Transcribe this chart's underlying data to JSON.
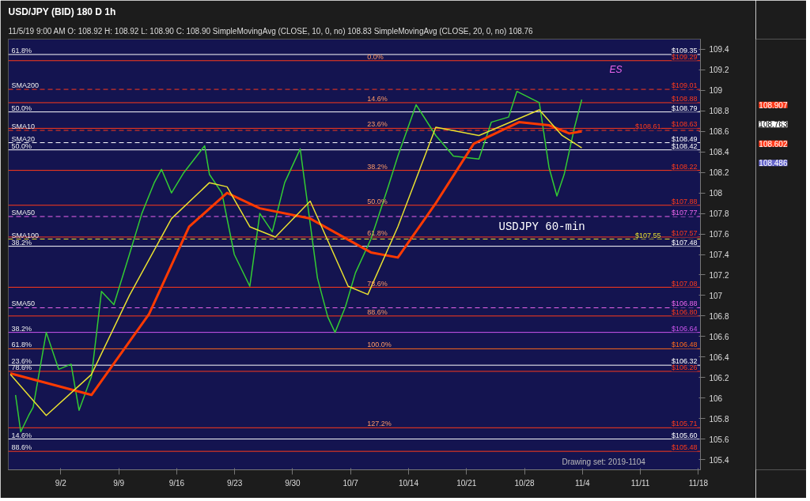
{
  "chart_data": {
    "type": "line",
    "title": "USD/JPY (BID) 180 D 1h",
    "subtitle": "11/5/19 9:00 AM   O: 108.92   H: 108.92   L: 108.90   C: 108.90   SimpleMovingAvg (CLOSE, 10, 0, no) 108.83   SimpleMovingAvg (CLOSE, 20, 0, no) 108.76",
    "xlim": [
      "2019-08-26T16:00",
      "2019-11-18T06:00"
    ],
    "ylim": [
      105.3,
      109.5
    ],
    "xticks": [
      {
        "value": "2019-09-02",
        "label": "9/2"
      },
      {
        "value": "2019-09-09",
        "label": "9/9"
      },
      {
        "value": "2019-09-16",
        "label": "9/16"
      },
      {
        "value": "2019-09-23",
        "label": "9/23"
      },
      {
        "value": "2019-09-30",
        "label": "9/30"
      },
      {
        "value": "2019-10-07",
        "label": "10/7"
      },
      {
        "value": "2019-10-14",
        "label": "10/14"
      },
      {
        "value": "2019-10-21",
        "label": "10/21"
      },
      {
        "value": "2019-10-28",
        "label": "10/28"
      },
      {
        "value": "2019-11-04",
        "label": "11/4"
      },
      {
        "value": "2019-11-11",
        "label": "11/11"
      },
      {
        "value": "2019-11-18",
        "label": "11/18"
      }
    ],
    "yticks": [
      105.4,
      105.6,
      105.8,
      106,
      106.2,
      106.4,
      106.6,
      106.8,
      107,
      107.2,
      107.4,
      107.6,
      107.8,
      108,
      108.2,
      108.4,
      108.6,
      108.8,
      109,
      109.2,
      109.4
    ],
    "grid": false,
    "line_style": "solid",
    "series": [
      {
        "color": "#33cc33",
        "x": [
          "2019-08-27T13:00",
          "2019-08-28T04:00",
          "2019-08-29T03:00",
          "2019-08-29T16:00",
          "2019-08-31T06:00",
          "2019-09-01T18:00",
          "2019-09-03T06:00",
          "2019-09-04T05:00",
          "2019-09-05T17:00",
          "2019-09-06T22:00",
          "2019-09-08T10:00",
          "2019-09-10T07:00",
          "2019-09-11T19:00",
          "2019-09-13T07:00",
          "2019-09-14T04:00",
          "2019-09-15T09:00",
          "2019-09-16T21:00",
          "2019-09-19T09:00",
          "2019-09-19T23:00",
          "2019-09-21T11:00",
          "2019-09-22T23:00",
          "2019-09-24T20:00",
          "2019-09-26T01:00",
          "2019-09-27T13:00",
          "2019-09-29T01:00",
          "2019-09-30T22:00",
          "2019-10-02T03:00",
          "2019-10-03T00:00",
          "2019-10-04T06:00",
          "2019-10-05T03:00",
          "2019-10-06T09:00",
          "2019-10-07T14:00",
          "2019-10-09T11:00",
          "2019-10-11T13:00",
          "2019-10-12T17:00",
          "2019-10-14T22:00",
          "2019-10-17T07:00",
          "2019-10-19T10:00",
          "2019-10-22T12:00",
          "2019-10-24T00:00",
          "2019-10-26T02:00",
          "2019-10-27T02:00",
          "2019-10-29T19:00",
          "2019-10-30T23:00",
          "2019-10-31T22:00",
          "2019-11-01T19:00",
          "2019-11-03T01:00",
          "2019-11-03T22:00"
        ],
        "values": [
          106.03,
          105.67,
          105.83,
          105.91,
          106.64,
          106.28,
          106.33,
          105.88,
          106.21,
          107.04,
          106.91,
          107.4,
          107.8,
          108.1,
          108.23,
          108.0,
          108.2,
          108.46,
          108.18,
          108.0,
          107.4,
          107.09,
          107.8,
          107.62,
          108.1,
          108.43,
          107.7,
          107.17,
          106.79,
          106.64,
          106.89,
          107.22,
          107.55,
          108.06,
          108.36,
          108.86,
          108.56,
          108.36,
          108.33,
          108.69,
          108.74,
          108.99,
          108.88,
          108.25,
          107.97,
          108.18,
          108.64,
          108.91
        ]
      },
      {
        "color": "#ff3a00",
        "x": [
          "2019-08-26T22:00",
          "2019-09-05T17:00",
          "2019-09-12T16:00",
          "2019-09-17T12:00",
          "2019-09-22T02:00",
          "2019-09-26T01:00",
          "2019-10-02T03:00",
          "2019-10-09T11:00",
          "2019-10-12T17:00",
          "2019-10-17T07:00",
          "2019-10-21T21:00",
          "2019-10-27T08:00",
          "2019-10-30T23:00",
          "2019-11-02T10:00",
          "2019-11-03T22:00"
        ],
        "values": [
          106.24,
          106.03,
          106.82,
          107.67,
          108.0,
          107.85,
          107.75,
          107.42,
          107.37,
          107.9,
          108.48,
          108.69,
          108.66,
          108.58,
          108.6
        ]
      },
      {
        "color": "#e8e030",
        "x": [
          "2019-08-26T22:00",
          "2019-08-31T06:00",
          "2019-09-05T17:00",
          "2019-09-10T07:00",
          "2019-09-15T09:00",
          "2019-09-19T23:00",
          "2019-09-22T02:00",
          "2019-09-24T20:00",
          "2019-09-27T22:00",
          "2019-10-02T03:00",
          "2019-10-06T17:00",
          "2019-10-09T02:00",
          "2019-10-12T17:00",
          "2019-10-17T07:00",
          "2019-10-22T12:00",
          "2019-10-29T19:00",
          "2019-11-01T13:00",
          "2019-11-03T22:00"
        ],
        "values": [
          106.23,
          105.83,
          106.23,
          107.0,
          107.75,
          108.1,
          108.06,
          107.67,
          107.57,
          107.92,
          107.09,
          107.01,
          107.67,
          108.64,
          108.56,
          108.81,
          108.56,
          108.44
        ]
      }
    ],
    "ref_lines": [
      {
        "axis": "y",
        "value": 109.35,
        "label": "$109.35",
        "color": "#ffffff"
      },
      {
        "axis": "y",
        "value": 109.29,
        "label": "$109.29",
        "color": "#ff3a1a"
      },
      {
        "axis": "y",
        "value": 109.01,
        "label": "$109.01",
        "color": "#ff3a1a",
        "line_style": "dashed"
      },
      {
        "axis": "y",
        "value": 108.88,
        "label": "$108.88",
        "color": "#ff3a1a"
      },
      {
        "axis": "y",
        "value": 108.79,
        "label": "$108.79",
        "color": "#ffffff"
      },
      {
        "axis": "y",
        "value": 108.63,
        "label": "$108.63",
        "color": "#ff3a1a"
      },
      {
        "axis": "y",
        "value": 108.61,
        "label": "$108.61",
        "color": "#ff3a1a",
        "line_style": "dashed"
      },
      {
        "axis": "y",
        "value": 108.49,
        "label": "$108.49",
        "color": "#ffffff",
        "line_style": "dashed"
      },
      {
        "axis": "y",
        "value": 108.42,
        "label": "$108.42",
        "color": "#ffffff"
      },
      {
        "axis": "y",
        "value": 108.22,
        "label": "$108.22",
        "color": "#ff3a1a"
      },
      {
        "axis": "y",
        "value": 107.88,
        "label": "$107.88",
        "color": "#ff3a1a"
      },
      {
        "axis": "y",
        "value": 107.77,
        "label": "$107.77",
        "color": "#ee66ee",
        "line_style": "dashed"
      },
      {
        "axis": "y",
        "value": 107.57,
        "label": "$107.57",
        "color": "#ff3a1a"
      },
      {
        "axis": "y",
        "value": 107.55,
        "label": "$107.55",
        "color": "#e8e030",
        "line_style": "dashed"
      },
      {
        "axis": "y",
        "value": 107.48,
        "label": "$107.48",
        "color": "#ffffff"
      },
      {
        "axis": "y",
        "value": 107.08,
        "label": "$107.08",
        "color": "#ff3a1a"
      },
      {
        "axis": "y",
        "value": 106.88,
        "label": "$106.88",
        "color": "#ee66ee",
        "line_style": "dashed"
      },
      {
        "axis": "y",
        "value": 106.8,
        "label": "$106.80",
        "color": "#ff3a1a"
      },
      {
        "axis": "y",
        "value": 106.64,
        "label": "$106.64",
        "color": "#cc55ee"
      },
      {
        "axis": "y",
        "value": 106.48,
        "label": "$106.48",
        "color": "#ff6a1a"
      },
      {
        "axis": "y",
        "value": 106.32,
        "label": "$106.32",
        "color": "#ffffff"
      },
      {
        "axis": "y",
        "value": 106.26,
        "label": "$106.26",
        "color": "#ff3a1a"
      },
      {
        "axis": "y",
        "value": 105.71,
        "label": "$105.71",
        "color": "#ff3a1a"
      },
      {
        "axis": "y",
        "value": 105.6,
        "label": "$105.60",
        "color": "#ffffff"
      },
      {
        "axis": "y",
        "value": 105.48,
        "label": "$105.48",
        "color": "#ff3a1a"
      }
    ],
    "annotations": [
      {
        "text": "61.8%",
        "x": "2019-08-26T16:00",
        "y": 109.35
      },
      {
        "text": "SMA200",
        "x": "2019-08-26T16:00",
        "y": 109.01
      },
      {
        "text": "50.0%",
        "x": "2019-08-26T16:00",
        "y": 108.79
      },
      {
        "text": "SMA10",
        "x": "2019-08-26T16:00",
        "y": 108.61
      },
      {
        "text": "SMA20",
        "x": "2019-08-26T16:00",
        "y": 108.49
      },
      {
        "text": "50.0%",
        "x": "2019-08-26T16:00",
        "y": 108.42
      },
      {
        "text": "SMA50",
        "x": "2019-08-26T16:00",
        "y": 107.77
      },
      {
        "text": "SMA100",
        "x": "2019-08-26T16:00",
        "y": 107.55
      },
      {
        "text": "38.2%",
        "x": "2019-08-26T16:00",
        "y": 107.48
      },
      {
        "text": "SMA50",
        "x": "2019-08-26T16:00",
        "y": 106.88
      },
      {
        "text": "38.2%",
        "x": "2019-08-26T16:00",
        "y": 106.64
      },
      {
        "text": "61.8%",
        "x": "2019-08-26T16:00",
        "y": 106.48
      },
      {
        "text": "23.6%",
        "x": "2019-08-26T16:00",
        "y": 106.32
      },
      {
        "text": "78.6%",
        "x": "2019-08-26T16:00",
        "y": 106.26
      },
      {
        "text": "14.6%",
        "x": "2019-08-26T16:00",
        "y": 105.6
      },
      {
        "text": "88.6%",
        "x": "2019-08-26T16:00",
        "y": 105.48
      },
      {
        "text": "0.0%",
        "x": "2019-10-09T00:00",
        "y": 109.29
      },
      {
        "text": "14.6%",
        "x": "2019-10-09T00:00",
        "y": 108.88
      },
      {
        "text": "23.6%",
        "x": "2019-10-09T00:00",
        "y": 108.63
      },
      {
        "text": "38.2%",
        "x": "2019-10-09T00:00",
        "y": 108.22
      },
      {
        "text": "50.0%",
        "x": "2019-10-09T00:00",
        "y": 107.88
      },
      {
        "text": "61.8%",
        "x": "2019-10-09T00:00",
        "y": 107.57
      },
      {
        "text": "78.6%",
        "x": "2019-10-09T00:00",
        "y": 107.08
      },
      {
        "text": "88.6%",
        "x": "2019-10-09T00:00",
        "y": 106.8
      },
      {
        "text": "100.0%",
        "x": "2019-10-09T00:00",
        "y": 106.48
      },
      {
        "text": "127.2%",
        "x": "2019-10-09T00:00",
        "y": 105.71
      },
      "108.907",
      "108.763",
      "108.602",
      "108.486",
      "ES",
      "USDJPY 60-min",
      "Drawing set: 2019-1104"
    ]
  }
}
